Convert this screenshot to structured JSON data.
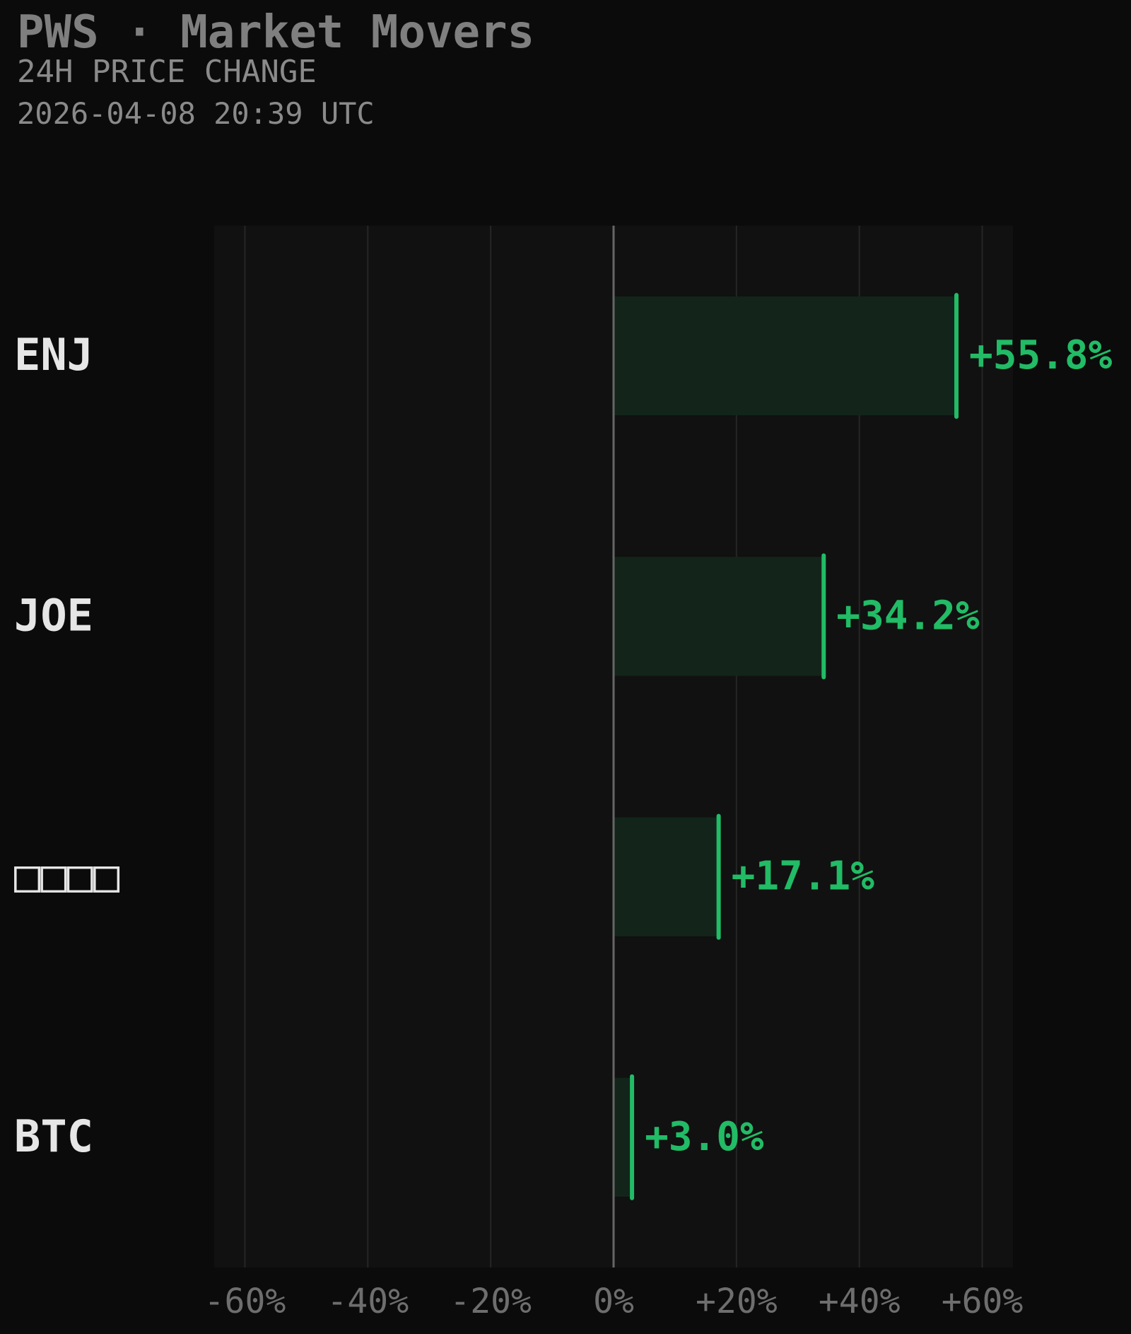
{
  "header": {
    "title": "PWS · Market Movers",
    "subtitle": "24H PRICE CHANGE",
    "timestamp": "2026-04-08 20:39 UTC"
  },
  "colors": {
    "background": "#0b0b0b",
    "plot_background": "#111111",
    "positive": "#22bb66",
    "positive_fill": "#13251b",
    "gridline": "#262626",
    "zero_line": "#666666",
    "tick_label": "#6e6e6e",
    "category_label": "#e6e6e6"
  },
  "chart_data": {
    "type": "bar",
    "orientation": "horizontal",
    "categories": [
      "ENJ",
      "JOE",
      "□□□□",
      "BTC"
    ],
    "values": [
      55.8,
      34.2,
      17.1,
      3.0
    ],
    "value_labels": [
      "+55.8%",
      "+34.2%",
      "+17.1%",
      "+3.0%"
    ],
    "xlim": [
      -65,
      65
    ],
    "xticks": [
      -60,
      -40,
      -20,
      0,
      20,
      40,
      60
    ],
    "xtick_labels": [
      "-60%",
      "-40%",
      "-20%",
      "0%",
      "+20%",
      "+40%",
      "+60%"
    ],
    "grid": true
  }
}
